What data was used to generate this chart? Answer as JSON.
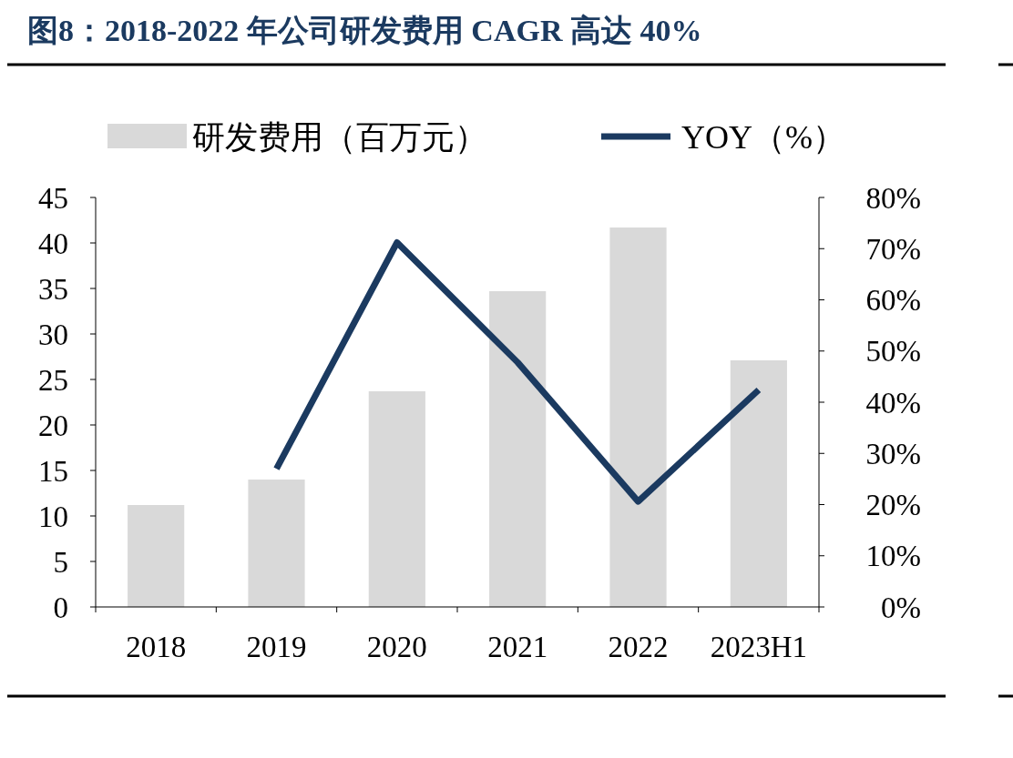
{
  "chart_data": {
    "type": "bar",
    "title": "图8：2018-2022 年公司研发费用 CAGR 高达 40%",
    "categories": [
      "2018",
      "2019",
      "2020",
      "2021",
      "2022",
      "2023H1"
    ],
    "series": [
      {
        "name": "研发费用（百万元）",
        "color": "#d9d9d9",
        "values": [
          11.2,
          14.0,
          23.7,
          34.7,
          41.7,
          27.1
        ]
      },
      {
        "name": "YOY（%）",
        "type": "line",
        "axis": "y2",
        "color": "#1b3a60",
        "values": [
          null,
          27.0,
          71.2,
          47.8,
          20.6,
          42.4
        ]
      }
    ],
    "ylim": [
      0,
      45
    ],
    "yticks": [
      0,
      5,
      10,
      15,
      20,
      25,
      30,
      35,
      40,
      45
    ],
    "y2lim": [
      0,
      80
    ],
    "y2ticks": [
      {
        "value": 0,
        "label": "0%"
      },
      {
        "value": 10,
        "label": "10%"
      },
      {
        "value": 20,
        "label": "20%"
      },
      {
        "value": 30,
        "label": "30%"
      },
      {
        "value": 40,
        "label": "40%"
      },
      {
        "value": 50,
        "label": "50%"
      },
      {
        "value": 60,
        "label": "60%"
      },
      {
        "value": 70,
        "label": "70%"
      },
      {
        "value": 80,
        "label": "80%"
      }
    ],
    "legend": "top",
    "grid": false,
    "marker": "none"
  }
}
